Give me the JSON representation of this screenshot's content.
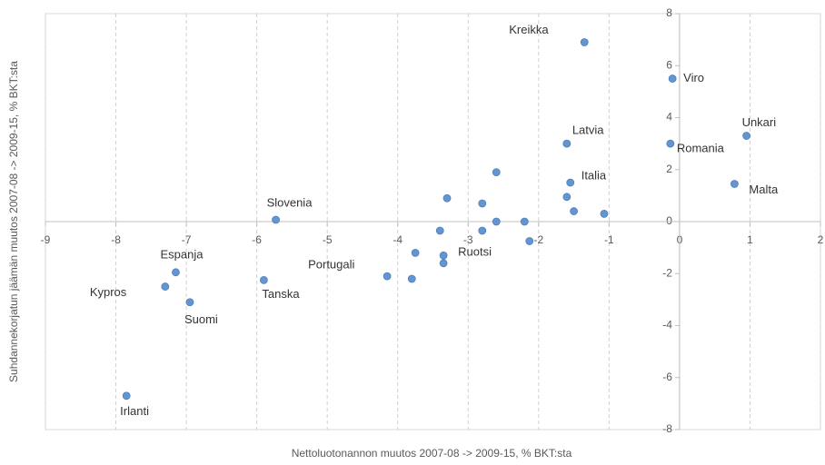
{
  "chart_data": {
    "type": "scatter",
    "xlabel": "Nettoluotonannon muutos 2007-08 -> 2009-15, % BKT:sta",
    "ylabel": "Suhdannekorjatun jäämän muutos 2007-08 -> 2009-15, % BKT:sta",
    "color": "#6495cf",
    "x": [
      -1.35,
      -0.1,
      0.95,
      -0.13,
      -1.6,
      0.78,
      -1.55,
      -5.73,
      -7.15,
      -7.3,
      -6.95,
      -5.9,
      -4.15,
      -3.35,
      -7.85,
      -2.6,
      -1.6,
      -1.5,
      -1.07,
      -3.3,
      -2.8,
      -2.6,
      -2.2,
      -3.4,
      -2.8,
      -2.13,
      -3.75,
      -3.35,
      -3.8
    ],
    "values": [
      6.9,
      5.5,
      3.3,
      3.0,
      3.0,
      1.45,
      1.5,
      0.07,
      -1.95,
      -2.5,
      -3.1,
      -2.25,
      -2.1,
      -1.3,
      -6.7,
      1.9,
      0.95,
      0.4,
      0.3,
      0.9,
      0.7,
      0.0,
      0.0,
      -0.35,
      -0.35,
      -0.75,
      -1.2,
      -1.6,
      -2.2
    ],
    "labels": [
      "Kreikka",
      "Viro",
      "Unkari",
      "Romania",
      "Latvia",
      "Malta",
      "Italia",
      "Slovenia",
      "Espanja",
      "Kypros",
      "Suomi",
      "Tanska",
      "Portugali",
      "Ruotsi",
      "Irlanti",
      null,
      null,
      null,
      null,
      null,
      null,
      null,
      null,
      null,
      null,
      null,
      null,
      null,
      null
    ],
    "xlim": [
      -9,
      2
    ],
    "xticks": [
      -9,
      -8,
      -7,
      -6,
      -5,
      -4,
      -3,
      -2,
      -1,
      0,
      1,
      2
    ],
    "ylim": [
      -8,
      8
    ],
    "yticks": [
      -8,
      -6,
      -4,
      -2,
      0,
      2,
      4,
      6,
      8
    ],
    "grid": true
  }
}
